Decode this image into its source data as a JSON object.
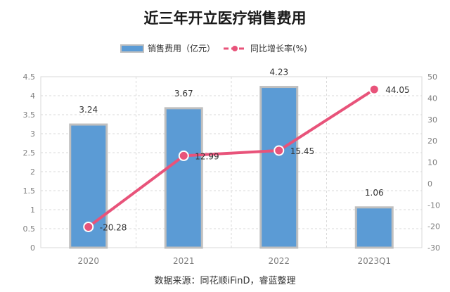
{
  "chart_data": {
    "type": "bar",
    "title": "近三年开立医疗销售费用",
    "source": "数据来源：同花顺iFinD，睿蓝整理",
    "categories": [
      "2020",
      "2021",
      "2022",
      "2023Q1"
    ],
    "series": [
      {
        "name": "销售费用（亿元）",
        "kind": "bar",
        "axis": "left",
        "color": "#5b9bd5",
        "values": [
          3.24,
          3.67,
          4.23,
          1.06
        ],
        "labels": [
          "3.24",
          "3.67",
          "4.23",
          "1.06"
        ]
      },
      {
        "name": "同比增长率(%)",
        "kind": "line",
        "axis": "right",
        "color": "#e8537a",
        "values": [
          -20.28,
          12.99,
          15.45,
          44.05
        ],
        "labels": [
          "-20.28",
          "12.99",
          "15.45",
          "44.05"
        ]
      }
    ],
    "y_left": {
      "min": 0,
      "max": 4.5,
      "ticks": [
        "0",
        "0.5",
        "1",
        "1.5",
        "2",
        "2.5",
        "3",
        "3.5",
        "4",
        "4.5"
      ]
    },
    "y_right": {
      "min": -30,
      "max": 50,
      "ticks": [
        "-30",
        "-20",
        "-10",
        "0",
        "10",
        "20",
        "30",
        "40",
        "50"
      ]
    },
    "grid": true,
    "legend_position": "top-center"
  }
}
